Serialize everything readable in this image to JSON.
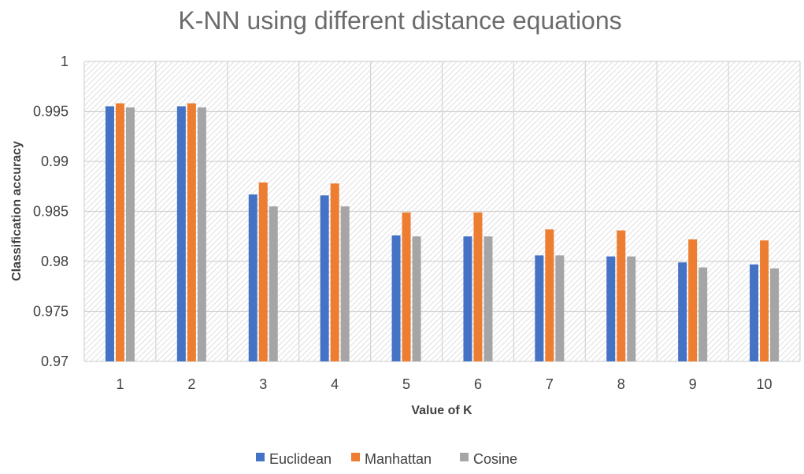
{
  "chart_data": {
    "type": "bar",
    "title": "K-NN using different distance equations",
    "xlabel": "Value of K",
    "ylabel": "Classification accuracy",
    "categories": [
      "1",
      "2",
      "3",
      "4",
      "5",
      "6",
      "7",
      "8",
      "9",
      "10"
    ],
    "ylim": [
      0.97,
      1
    ],
    "yticks": [
      "0.97",
      "0.975",
      "0.98",
      "0.985",
      "0.99",
      "0.995",
      "1"
    ],
    "grid": true,
    "legend_position": "bottom",
    "series": [
      {
        "name": "Euclidean",
        "color": "#4472C4",
        "values": [
          0.9955,
          0.9955,
          0.9867,
          0.9866,
          0.9826,
          0.9825,
          0.9806,
          0.9805,
          0.9799,
          0.9797
        ]
      },
      {
        "name": "Manhattan",
        "color": "#ED7D31",
        "values": [
          0.9958,
          0.9958,
          0.9879,
          0.9878,
          0.9849,
          0.9849,
          0.9832,
          0.9831,
          0.9822,
          0.9821
        ]
      },
      {
        "name": "Cosine",
        "color": "#A5A5A5",
        "values": [
          0.9954,
          0.9954,
          0.9855,
          0.9855,
          0.9825,
          0.9825,
          0.9806,
          0.9805,
          0.9794,
          0.9793
        ]
      }
    ]
  }
}
